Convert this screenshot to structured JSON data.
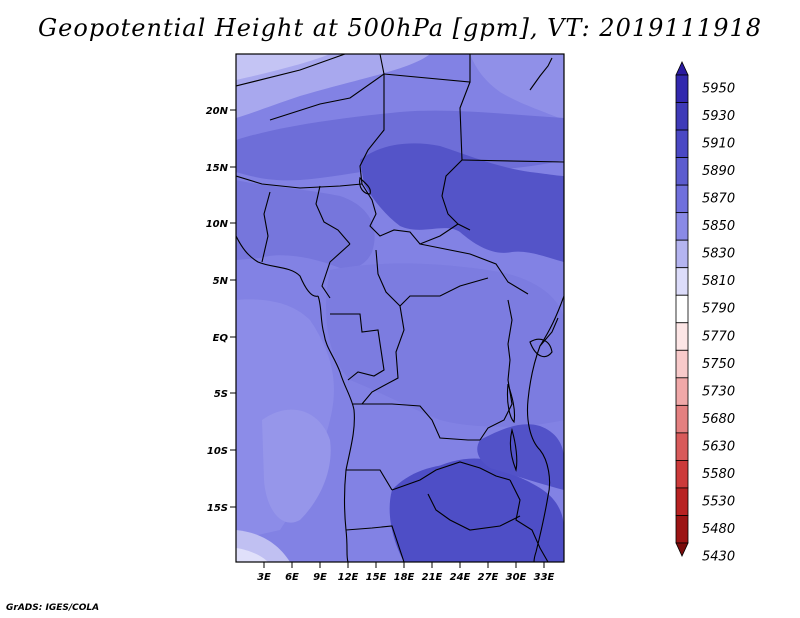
{
  "title": "Geopotential Height at 500hPa [gpm], VT: 2019111918",
  "credit": "GrADS: IGES/COLA",
  "chart_data": {
    "type": "filled_contour_map",
    "variable": "Geopotential Height at 500hPa",
    "units": "gpm",
    "valid_time": "2019111918",
    "lon_ticks": [
      "3E",
      "6E",
      "9E",
      "12E",
      "15E",
      "18E",
      "21E",
      "24E",
      "27E",
      "30E",
      "33E"
    ],
    "lat_ticks": [
      "20N",
      "15N",
      "10N",
      "5N",
      "EQ",
      "5S",
      "10S",
      "15S"
    ],
    "colorbar": {
      "orientation": "vertical",
      "placement": "right",
      "levels": [
        5950,
        5930,
        5910,
        5890,
        5870,
        5850,
        5830,
        5810,
        5790,
        5770,
        5750,
        5730,
        5680,
        5630,
        5580,
        5530,
        5480,
        5430
      ],
      "colors": [
        "#2a1aa0",
        "#3228ae",
        "#3e3ab8",
        "#4a48c4",
        "#5c5ccf",
        "#7070dc",
        "#8a8ae6",
        "#b4b4f0",
        "#dcdcfa",
        "#ffffff",
        "#fde6e6",
        "#f8caca",
        "#f0a8a8",
        "#e48080",
        "#d85a5a",
        "#cc3a3a",
        "#b82222",
        "#9c1414",
        "#7a0c0c"
      ]
    },
    "field_levels_present": [
      5830,
      5850,
      5870,
      5890,
      5910
    ]
  }
}
